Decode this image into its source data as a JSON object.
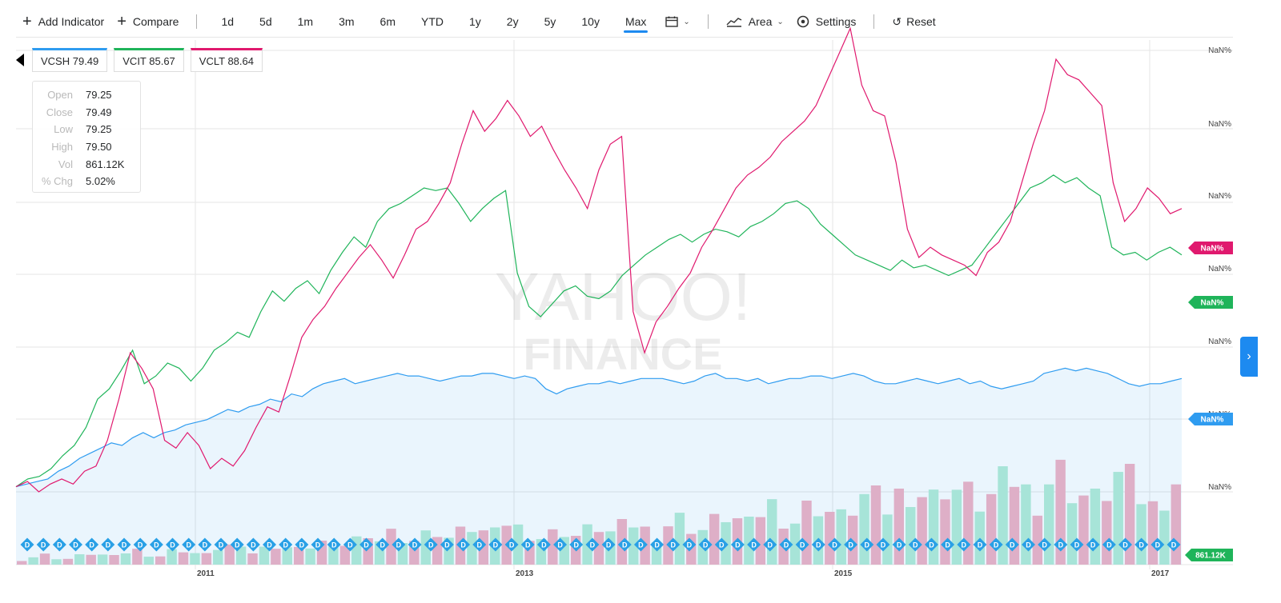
{
  "toolbar": {
    "add_indicator": "Add Indicator",
    "compare": "Compare",
    "ranges": [
      "1d",
      "5d",
      "1m",
      "3m",
      "6m",
      "YTD",
      "1y",
      "2y",
      "5y",
      "10y",
      "Max"
    ],
    "active_range": "Max",
    "chart_type": "Area",
    "settings": "Settings",
    "reset": "Reset"
  },
  "legend": [
    {
      "label": "VCSH 79.49",
      "color": "#2f9cf0"
    },
    {
      "label": "VCIT 85.67",
      "color": "#1fb45a"
    },
    {
      "label": "VCLT 88.64",
      "color": "#e0196e"
    }
  ],
  "ohlc": {
    "rows": [
      {
        "label": "Open",
        "value": "79.25"
      },
      {
        "label": "Close",
        "value": "79.49"
      },
      {
        "label": "Low",
        "value": "79.25"
      },
      {
        "label": "High",
        "value": "79.50"
      },
      {
        "label": "Vol",
        "value": "861.12K"
      },
      {
        "label": "% Chg",
        "value": "5.02%"
      }
    ]
  },
  "watermark": {
    "line1": "YAHOO!",
    "line2": "FINANCE"
  },
  "chart_data": {
    "type": "line",
    "x_tick_labels": [
      "2011",
      "2013",
      "2015",
      "2017"
    ],
    "y_tick_labels": [
      "NaN%",
      "NaN%",
      "NaN%",
      "NaN%",
      "NaN%",
      "NaN%",
      "NaN%",
      "NaN%"
    ],
    "y_badges": [
      {
        "label": "NaN%",
        "color": "#e0196e"
      },
      {
        "label": "NaN%",
        "color": "#1fb45a"
      },
      {
        "label": "NaN%",
        "color": "#2f9cf0"
      },
      {
        "label": "861.12K",
        "color": "#1fb45a"
      }
    ],
    "dividend_marker": "D",
    "grid": true,
    "series": [
      {
        "name": "VCSH",
        "color": "#2f9cf0",
        "fill": true,
        "values": [
          0.02,
          0.03,
          0.04,
          0.05,
          0.08,
          0.1,
          0.13,
          0.15,
          0.17,
          0.19,
          0.18,
          0.21,
          0.23,
          0.21,
          0.23,
          0.24,
          0.26,
          0.27,
          0.28,
          0.3,
          0.32,
          0.31,
          0.33,
          0.34,
          0.36,
          0.35,
          0.38,
          0.37,
          0.4,
          0.42,
          0.43,
          0.44,
          0.42,
          0.43,
          0.44,
          0.45,
          0.46,
          0.45,
          0.45,
          0.44,
          0.43,
          0.44,
          0.45,
          0.45,
          0.46,
          0.46,
          0.45,
          0.44,
          0.45,
          0.44,
          0.4,
          0.38,
          0.4,
          0.41,
          0.42,
          0.42,
          0.43,
          0.42,
          0.43,
          0.44,
          0.44,
          0.44,
          0.43,
          0.42,
          0.43,
          0.45,
          0.46,
          0.44,
          0.44,
          0.43,
          0.44,
          0.42,
          0.43,
          0.44,
          0.44,
          0.45,
          0.45,
          0.44,
          0.45,
          0.46,
          0.45,
          0.43,
          0.42,
          0.42,
          0.43,
          0.44,
          0.43,
          0.42,
          0.43,
          0.44,
          0.42,
          0.43,
          0.41,
          0.4,
          0.41,
          0.42,
          0.43,
          0.46,
          0.47,
          0.48,
          0.47,
          0.48,
          0.47,
          0.46,
          0.44,
          0.42,
          0.41,
          0.42,
          0.42,
          0.43,
          0.44
        ]
      },
      {
        "name": "VCIT",
        "color": "#1fb45a",
        "values": [
          0.02,
          0.05,
          0.06,
          0.09,
          0.14,
          0.18,
          0.25,
          0.36,
          0.4,
          0.47,
          0.55,
          0.42,
          0.45,
          0.5,
          0.48,
          0.43,
          0.48,
          0.55,
          0.58,
          0.62,
          0.6,
          0.7,
          0.78,
          0.74,
          0.79,
          0.82,
          0.77,
          0.86,
          0.93,
          0.99,
          0.95,
          1.05,
          1.1,
          1.12,
          1.15,
          1.18,
          1.17,
          1.18,
          1.12,
          1.05,
          1.1,
          1.14,
          1.17,
          0.85,
          0.72,
          0.68,
          0.73,
          0.78,
          0.8,
          0.76,
          0.75,
          0.78,
          0.84,
          0.88,
          0.92,
          0.95,
          0.98,
          1.0,
          0.97,
          1.0,
          1.02,
          1.01,
          0.99,
          1.03,
          1.05,
          1.08,
          1.12,
          1.13,
          1.1,
          1.04,
          1.0,
          0.96,
          0.92,
          0.9,
          0.88,
          0.86,
          0.9,
          0.87,
          0.88,
          0.86,
          0.84,
          0.86,
          0.88,
          0.94,
          1.0,
          1.06,
          1.12,
          1.18,
          1.2,
          1.23,
          1.2,
          1.22,
          1.18,
          1.15,
          0.95,
          0.92,
          0.93,
          0.9,
          0.93,
          0.95,
          0.92
        ]
      },
      {
        "name": "VCLT",
        "color": "#e0196e",
        "values": [
          0.02,
          0.04,
          0.0,
          0.03,
          0.05,
          0.03,
          0.08,
          0.1,
          0.2,
          0.36,
          0.54,
          0.48,
          0.4,
          0.2,
          0.17,
          0.23,
          0.18,
          0.09,
          0.13,
          0.1,
          0.16,
          0.25,
          0.33,
          0.31,
          0.45,
          0.6,
          0.67,
          0.72,
          0.79,
          0.85,
          0.91,
          0.96,
          0.9,
          0.83,
          0.92,
          1.02,
          1.05,
          1.12,
          1.2,
          1.35,
          1.48,
          1.4,
          1.45,
          1.52,
          1.46,
          1.38,
          1.42,
          1.33,
          1.25,
          1.18,
          1.1,
          1.25,
          1.35,
          1.38,
          0.7,
          0.54,
          0.66,
          0.72,
          0.79,
          0.85,
          0.95,
          1.02,
          1.1,
          1.18,
          1.23,
          1.26,
          1.3,
          1.36,
          1.4,
          1.44,
          1.5,
          1.6,
          1.7,
          1.8,
          1.58,
          1.48,
          1.46,
          1.28,
          1.02,
          0.91,
          0.95,
          0.92,
          0.9,
          0.88,
          0.84,
          0.93,
          0.97,
          1.05,
          1.2,
          1.35,
          1.48,
          1.68,
          1.62,
          1.6,
          1.55,
          1.5,
          1.2,
          1.05,
          1.1,
          1.18,
          1.14,
          1.08,
          1.1
        ]
      }
    ],
    "volume": {
      "colors": [
        "#f2b1c3",
        "#b5ecd6"
      ],
      "values": [
        0.05,
        0.08,
        0.1,
        0.07,
        0.06,
        0.09,
        0.12,
        0.1,
        0.08,
        0.13,
        0.15,
        0.11,
        0.09,
        0.14,
        0.16,
        0.12,
        0.1,
        0.18,
        0.2,
        0.15,
        0.13,
        0.17,
        0.22,
        0.19,
        0.16,
        0.21,
        0.25,
        0.18,
        0.23,
        0.28,
        0.22,
        0.27,
        0.34,
        0.3,
        0.26,
        0.31,
        0.36,
        0.28,
        0.33,
        0.4,
        0.34,
        0.31,
        0.45,
        0.38,
        0.33,
        0.28,
        0.32,
        0.36,
        0.3,
        0.35,
        0.4,
        0.33,
        0.38,
        0.43,
        0.36,
        0.31,
        0.42,
        0.47,
        0.4,
        0.36,
        0.44,
        0.52,
        0.46,
        0.4,
        0.55,
        0.62,
        0.5,
        0.45,
        0.58,
        0.63,
        0.55,
        0.48,
        0.6,
        0.7,
        0.66,
        0.58,
        0.72,
        0.8,
        0.74,
        0.68,
        0.85,
        0.78,
        0.72,
        0.65,
        0.7,
        0.82,
        0.9,
        0.76,
        0.68,
        0.88,
        0.95,
        0.8,
        0.72,
        0.66,
        0.78,
        0.92,
        0.84,
        0.7,
        0.6,
        0.75,
        0.88
      ]
    }
  },
  "side_tab": {
    "glyph": "›"
  }
}
